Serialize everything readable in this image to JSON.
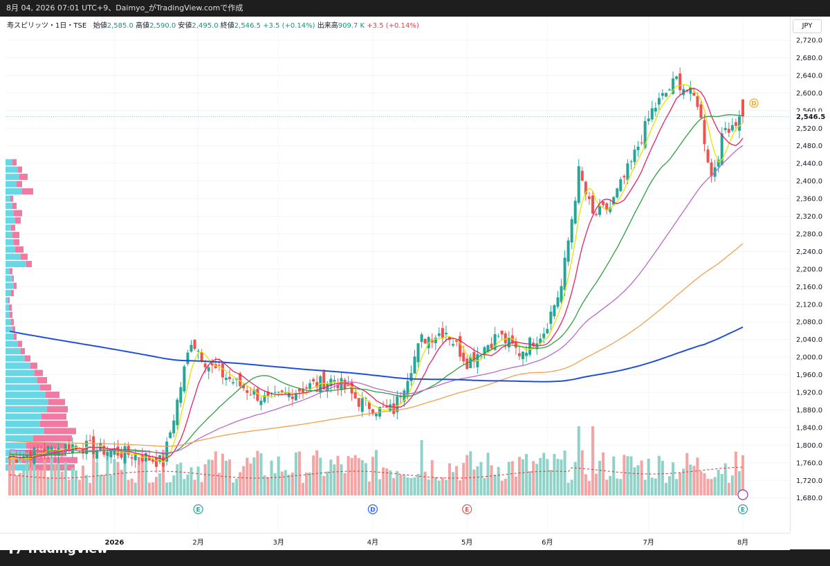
{
  "header": {
    "text": "8月 04, 2026 07:01 UTC+9、Daimyo_がTradingView.comで作成"
  },
  "legend": {
    "symbol": "寿スピリッツ・1日・TSE",
    "open_label": "始値",
    "open": "2,585.0",
    "high_label": "高値",
    "high": "2,590.0",
    "low_label": "安値",
    "low": "2,495.0",
    "close_label": "終値",
    "close": "2,546.5",
    "change": "+3.5 (+0.14%)",
    "volume_label": "出来高",
    "volume": "909.7 K",
    "vol_change": "+3.5 (+0.14%)"
  },
  "currency": "JPY",
  "brand": "TradingView",
  "colors": {
    "up": "#26a69a",
    "down": "#ef5350",
    "ma5": "#e3e300",
    "ma10": "#e91e63",
    "ma25": "#2e9f3e",
    "ma50": "#ba68c8",
    "ma100": "#f0a050",
    "ma200": "#1f4fd8",
    "vp_up": "#4dd0e1",
    "vp_down": "#f06292"
  },
  "chart_data": {
    "type": "candlestick",
    "title": "寿スピリッツ・1日・TSE",
    "y_ticks": [
      "2,720.0",
      "2,680.0",
      "2,640.0",
      "2,600.0",
      "2,560.0",
      "2,520.0",
      "2,480.0",
      "2,440.0",
      "2,400.0",
      "2,360.0",
      "2,320.0",
      "2,280.0",
      "2,240.0",
      "2,200.0",
      "2,160.0",
      "2,120.0",
      "2,080.0",
      "2,040.0",
      "2,000.0",
      "1,960.0",
      "1,920.0",
      "1,880.0",
      "1,840.0",
      "1,800.0",
      "1,760.0",
      "1,720.0",
      "1,680.0"
    ],
    "ylim": [
      1660,
      2740
    ],
    "last_price": "2,546.5",
    "x_ticks": [
      "2026",
      "2月",
      "3月",
      "4月",
      "5月",
      "6月",
      "7月",
      "8月"
    ],
    "events": [
      {
        "label": "E",
        "month": "2月",
        "type": "earnings"
      },
      {
        "label": "D",
        "month": "4月",
        "type": "dividend"
      },
      {
        "label": "E",
        "month": "5月",
        "type": "earnings"
      },
      {
        "label": "E",
        "month": "8月",
        "type": "earnings"
      },
      {
        "label": "D",
        "month": "8月",
        "type": "dividend"
      }
    ],
    "price_anchors": [
      {
        "t": 0,
        "p": 1770
      },
      {
        "t": 18,
        "p": 1800
      },
      {
        "t": 38,
        "p": 1775
      },
      {
        "t": 44,
        "p": 1760
      },
      {
        "t": 52,
        "p": 2040
      },
      {
        "t": 57,
        "p": 1980
      },
      {
        "t": 65,
        "p": 1940
      },
      {
        "t": 74,
        "p": 1900
      },
      {
        "t": 84,
        "p": 1930
      },
      {
        "t": 93,
        "p": 1950
      },
      {
        "t": 100,
        "p": 1900
      },
      {
        "t": 106,
        "p": 1880
      },
      {
        "t": 110,
        "p": 1880
      },
      {
        "t": 118,
        "p": 2040
      },
      {
        "t": 125,
        "p": 2060
      },
      {
        "t": 131,
        "p": 1990
      },
      {
        "t": 140,
        "p": 2050
      },
      {
        "t": 146,
        "p": 2010
      },
      {
        "t": 153,
        "p": 2060
      },
      {
        "t": 158,
        "p": 2160
      },
      {
        "t": 163,
        "p": 2420
      },
      {
        "t": 167,
        "p": 2320
      },
      {
        "t": 172,
        "p": 2340
      },
      {
        "t": 178,
        "p": 2440
      },
      {
        "t": 184,
        "p": 2560
      },
      {
        "t": 191,
        "p": 2630
      },
      {
        "t": 197,
        "p": 2580
      },
      {
        "t": 201,
        "p": 2410
      },
      {
        "t": 205,
        "p": 2520
      },
      {
        "t": 210,
        "p": 2546.5
      }
    ],
    "moving_averages": [
      {
        "name": "5",
        "color": "#e3e300",
        "window": 5
      },
      {
        "name": "10",
        "color": "#e91e63",
        "window": 10
      },
      {
        "name": "25",
        "color": "#2e9f3e",
        "window": 25
      },
      {
        "name": "50",
        "color": "#ba68c8",
        "window": 50
      },
      {
        "name": "100",
        "color": "#f0a050",
        "window": 100
      },
      {
        "name": "200",
        "color": "#1f4fd8",
        "window": 200
      }
    ],
    "volume_profile": {
      "bins_price_start": 1740,
      "bin_size": 16.5,
      "up": [
        30,
        24,
        28,
        30,
        40,
        56,
        50,
        52,
        60,
        62,
        58,
        50,
        46,
        42,
        36,
        28,
        22,
        18,
        12,
        10,
        8,
        6,
        5,
        4,
        8,
        12,
        10,
        6,
        30,
        22,
        14,
        12,
        10,
        8,
        14,
        12,
        10,
        7,
        24,
        16,
        20,
        18,
        10
      ],
      "down": [
        70,
        80,
        60,
        58,
        56,
        46,
        40,
        36,
        30,
        24,
        20,
        16,
        14,
        12,
        10,
        8,
        6,
        6,
        4,
        4,
        4,
        4,
        4,
        2,
        4,
        4,
        2,
        4,
        8,
        10,
        12,
        8,
        10,
        6,
        8,
        12,
        6,
        4,
        16,
        8,
        12,
        6,
        6
      ]
    }
  }
}
